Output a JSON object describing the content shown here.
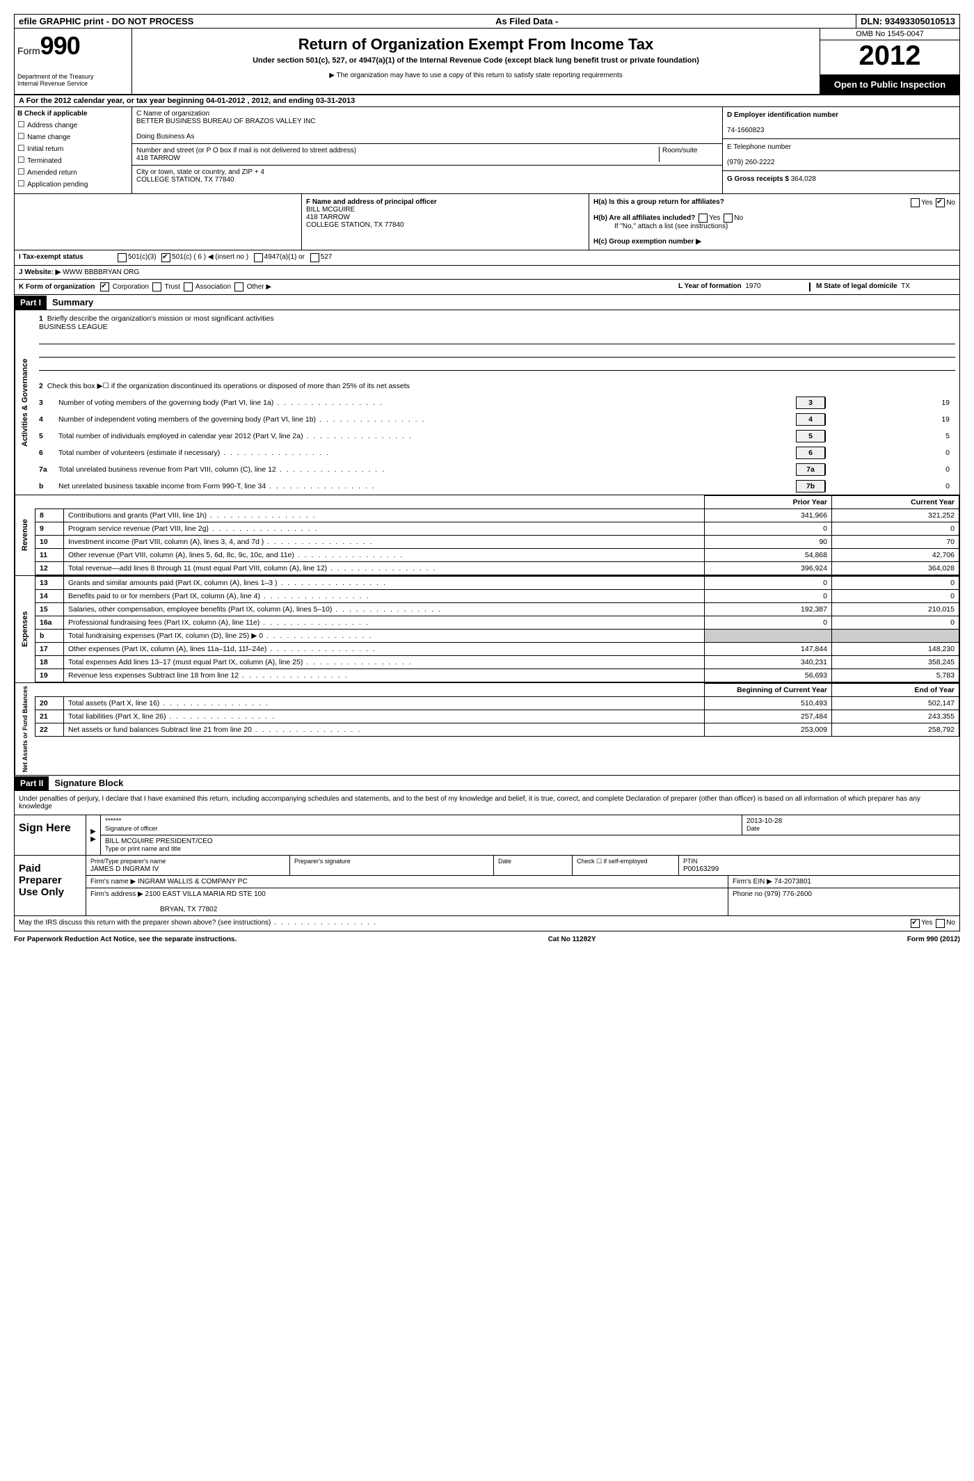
{
  "topbar": {
    "efile": "efile GRAPHIC print - DO NOT PROCESS",
    "asfiled": "As Filed Data -",
    "dln_label": "DLN:",
    "dln": "93493305010513"
  },
  "header": {
    "form_label": "Form",
    "form_num": "990",
    "dept": "Department of the Treasury\nInternal Revenue Service",
    "title": "Return of Organization Exempt From Income Tax",
    "subtitle": "Under section 501(c), 527, or 4947(a)(1) of the Internal Revenue Code (except black lung benefit trust or private foundation)",
    "note": "The organization may have to use a copy of this return to satisfy state reporting requirements",
    "omb": "OMB No 1545-0047",
    "year": "2012",
    "inspection": "Open to Public Inspection"
  },
  "row_a": "A For the 2012 calendar year, or tax year beginning 04-01-2012   , 2012, and ending 03-31-2013",
  "section_b": {
    "label": "B Check if applicable",
    "items": [
      "Address change",
      "Name change",
      "Initial return",
      "Terminated",
      "Amended return",
      "Application pending"
    ]
  },
  "section_c": {
    "name_label": "C Name of organization",
    "name": "BETTER BUSINESS BUREAU OF BRAZOS VALLEY INC",
    "dba_label": "Doing Business As",
    "dba": "",
    "street_label": "Number and street (or P O  box if mail is not delivered to street address)",
    "room_label": "Room/suite",
    "street": "418 TARROW",
    "city_label": "City or town, state or country, and ZIP + 4",
    "city": "COLLEGE STATION, TX  77840"
  },
  "section_d": {
    "label": "D Employer identification number",
    "ein": "74-1660823"
  },
  "section_e": {
    "label": "E Telephone number",
    "phone": "(979) 260-2222"
  },
  "section_g": {
    "label": "G Gross receipts $",
    "amount": "364,028"
  },
  "section_f": {
    "label": "F  Name and address of principal officer",
    "name": "BILL MCGUIRE",
    "street": "418 TARROW",
    "city": "COLLEGE STATION, TX  77840"
  },
  "section_h": {
    "ha": "H(a)  Is this a group return for affiliates?",
    "ha_yes": "Yes",
    "ha_no": "No",
    "hb": "H(b)  Are all affiliates included?",
    "hb_note": "If \"No,\" attach a list  (see instructions)",
    "hc": "H(c)  Group exemption number ▶"
  },
  "section_i": {
    "label": "I  Tax-exempt status",
    "opts": [
      "501(c)(3)",
      "501(c) ( 6 ) ◀ (insert no )",
      "4947(a)(1) or",
      "527"
    ]
  },
  "section_j": {
    "label": "J  Website: ▶",
    "value": "WWW BBBBRYAN ORG"
  },
  "section_k": {
    "label": "K Form of organization",
    "opts": [
      "Corporation",
      "Trust",
      "Association",
      "Other ▶"
    ],
    "l_label": "L Year of formation",
    "l_val": "1970",
    "m_label": "M State of legal domicile",
    "m_val": "TX"
  },
  "part1": {
    "header": "Part I",
    "title": "Summary",
    "sec_ag": "Activities & Governance",
    "sec_rev": "Revenue",
    "sec_exp": "Expenses",
    "sec_na": "Net Assets or Fund Balances",
    "line1": "Briefly describe the organization's mission or most significant activities",
    "mission": "BUSINESS LEAGUE",
    "line2": "Check this box ▶☐ if the organization discontinued its operations or disposed of more than 25% of its net assets",
    "lines_ag": [
      {
        "n": "3",
        "d": "Number of voting members of the governing body (Part VI, line 1a)",
        "b": "3",
        "v": "19"
      },
      {
        "n": "4",
        "d": "Number of independent voting members of the governing body (Part VI, line 1b)",
        "b": "4",
        "v": "19"
      },
      {
        "n": "5",
        "d": "Total number of individuals employed in calendar year 2012 (Part V, line 2a)",
        "b": "5",
        "v": "5"
      },
      {
        "n": "6",
        "d": "Total number of volunteers (estimate if necessary)",
        "b": "6",
        "v": "0"
      },
      {
        "n": "7a",
        "d": "Total unrelated business revenue from Part VIII, column (C), line 12",
        "b": "7a",
        "v": "0"
      },
      {
        "n": "b",
        "d": "Net unrelated business taxable income from Form 990-T, line 34",
        "b": "7b",
        "v": "0"
      }
    ],
    "col_prior": "Prior Year",
    "col_current": "Current Year",
    "lines_rev": [
      {
        "n": "8",
        "d": "Contributions and grants (Part VIII, line 1h)",
        "p": "341,966",
        "c": "321,252"
      },
      {
        "n": "9",
        "d": "Program service revenue (Part VIII, line 2g)",
        "p": "0",
        "c": "0"
      },
      {
        "n": "10",
        "d": "Investment income (Part VIII, column (A), lines 3, 4, and 7d )",
        "p": "90",
        "c": "70"
      },
      {
        "n": "11",
        "d": "Other revenue (Part VIII, column (A), lines 5, 6d, 8c, 9c, 10c, and 11e)",
        "p": "54,868",
        "c": "42,706"
      },
      {
        "n": "12",
        "d": "Total revenue—add lines 8 through 11 (must equal Part VIII, column (A), line 12)",
        "p": "396,924",
        "c": "364,028"
      }
    ],
    "lines_exp": [
      {
        "n": "13",
        "d": "Grants and similar amounts paid (Part IX, column (A), lines 1–3 )",
        "p": "0",
        "c": "0"
      },
      {
        "n": "14",
        "d": "Benefits paid to or for members (Part IX, column (A), line 4)",
        "p": "0",
        "c": "0"
      },
      {
        "n": "15",
        "d": "Salaries, other compensation, employee benefits (Part IX, column (A), lines 5–10)",
        "p": "192,387",
        "c": "210,015"
      },
      {
        "n": "16a",
        "d": "Professional fundraising fees (Part IX, column (A), line 11e)",
        "p": "0",
        "c": "0"
      },
      {
        "n": "b",
        "d": "Total fundraising expenses (Part IX, column (D), line 25) ▶ 0",
        "p": "",
        "c": "",
        "shade": true
      },
      {
        "n": "17",
        "d": "Other expenses (Part IX, column (A), lines 11a–11d, 11f–24e)",
        "p": "147,844",
        "c": "148,230"
      },
      {
        "n": "18",
        "d": "Total expenses  Add lines 13–17 (must equal Part IX, column (A), line 25)",
        "p": "340,231",
        "c": "358,245"
      },
      {
        "n": "19",
        "d": "Revenue less expenses  Subtract line 18 from line 12",
        "p": "56,693",
        "c": "5,783"
      }
    ],
    "col_begin": "Beginning of Current Year",
    "col_end": "End of Year",
    "lines_na": [
      {
        "n": "20",
        "d": "Total assets (Part X, line 16)",
        "p": "510,493",
        "c": "502,147"
      },
      {
        "n": "21",
        "d": "Total liabilities (Part X, line 26)",
        "p": "257,484",
        "c": "243,355"
      },
      {
        "n": "22",
        "d": "Net assets or fund balances  Subtract line 21 from line 20",
        "p": "253,009",
        "c": "258,792"
      }
    ]
  },
  "part2": {
    "header": "Part II",
    "title": "Signature Block",
    "perjury": "Under penalties of perjury, I declare that I have examined this return, including accompanying schedules and statements, and to the best of my knowledge and belief, it is true, correct, and complete  Declaration of preparer (other than officer) is based on all information of which preparer has any knowledge",
    "sign_here": "Sign Here",
    "sig_stars": "******",
    "sig_officer_label": "Signature of officer",
    "sig_date": "2013-10-28",
    "sig_date_label": "Date",
    "sig_name": "BILL MCGUIRE PRESIDENT/CEO",
    "sig_name_label": "Type or print name and title",
    "paid": "Paid Preparer Use Only",
    "prep_name_label": "Print/Type preparer's name",
    "prep_name": "JAMES D INGRAM IV",
    "prep_sig_label": "Preparer's signature",
    "prep_date_label": "Date",
    "prep_check": "Check ☐ if self-employed",
    "ptin_label": "PTIN",
    "ptin": "P00163299",
    "firm_name_label": "Firm's name   ▶",
    "firm_name": "INGRAM WALLIS & COMPANY PC",
    "firm_ein_label": "Firm's EIN ▶",
    "firm_ein": "74-2073801",
    "firm_addr_label": "Firm's address ▶",
    "firm_addr": "2100 EAST VILLA MARIA RD STE 100",
    "firm_city": "BRYAN, TX  77802",
    "firm_phone_label": "Phone no",
    "firm_phone": "(979) 776-2600",
    "discuss": "May the IRS discuss this return with the preparer shown above? (see instructions)",
    "yes": "Yes",
    "no": "No"
  },
  "footer": {
    "left": "For Paperwork Reduction Act Notice, see the separate instructions.",
    "mid": "Cat No 11282Y",
    "right": "Form 990 (2012)"
  }
}
